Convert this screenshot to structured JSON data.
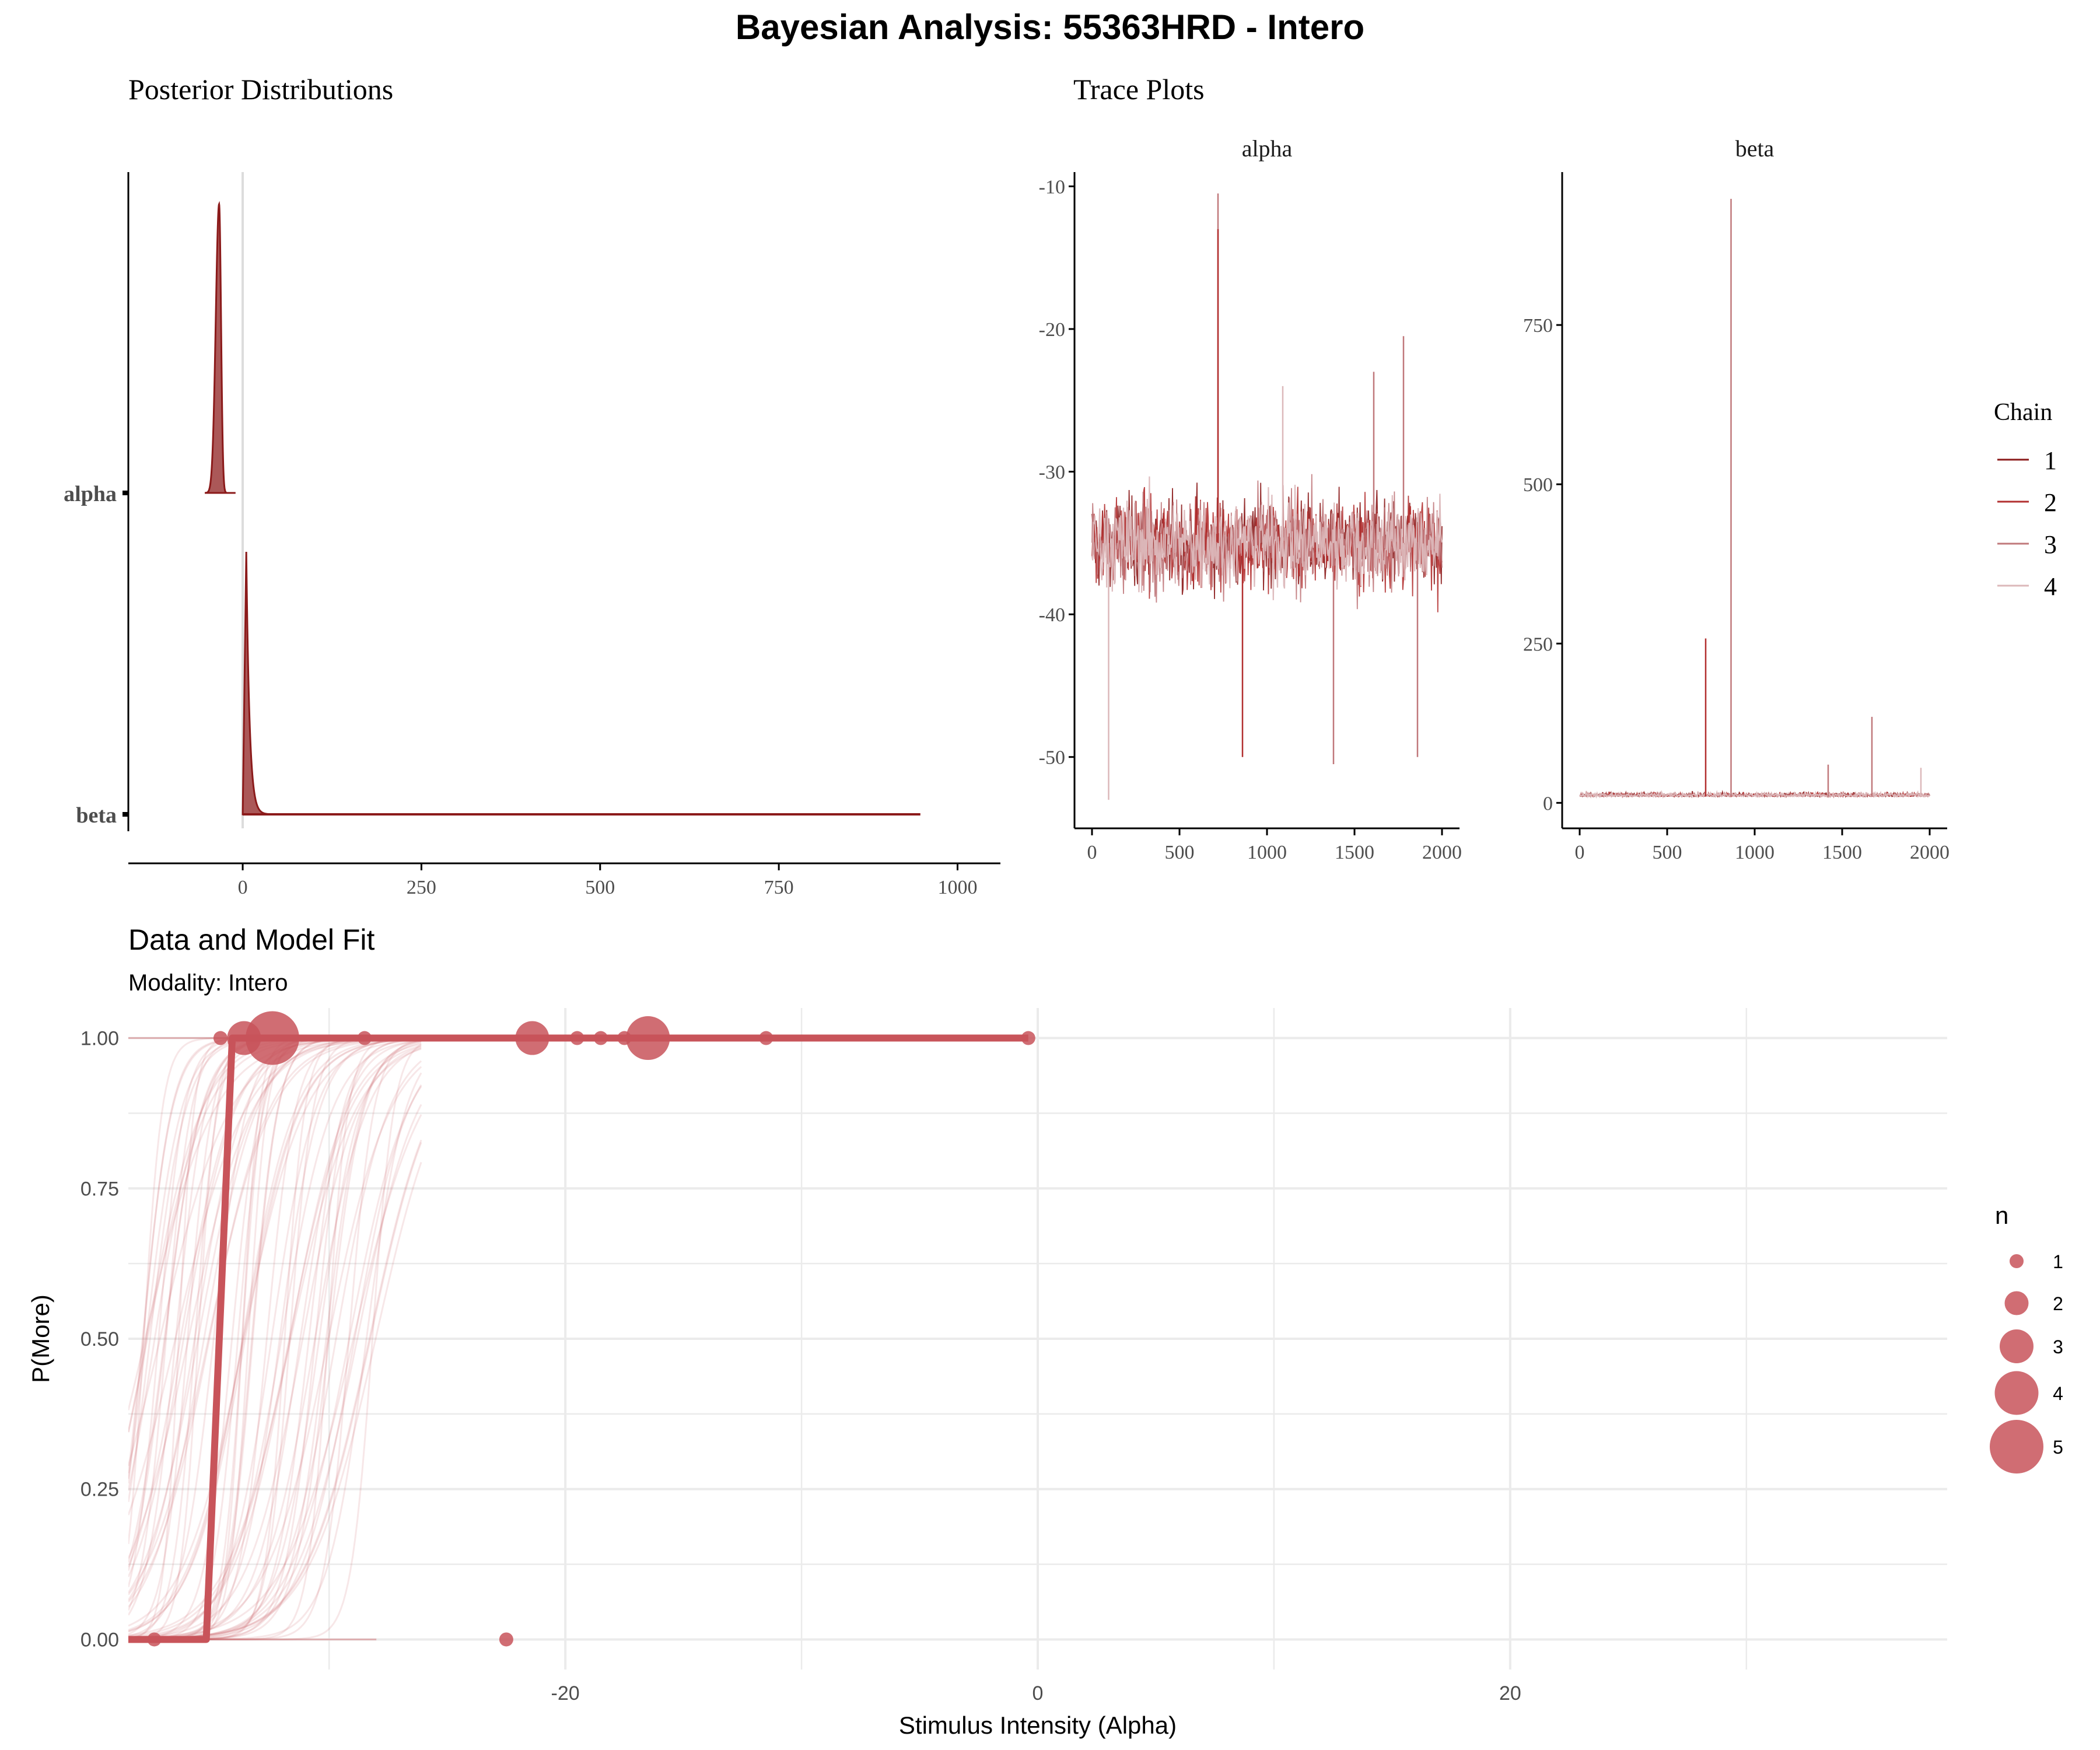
{
  "figure": {
    "title": "Bayesian Analysis: 55363HRD - Intero"
  },
  "colors": {
    "chain1": "#8b1a1a",
    "chain2": "#b22f2f",
    "chain3": "#c0787b",
    "chain4": "#dcb8ba",
    "fit": "#c8545a",
    "posterior_fill": "#9c3b3b",
    "axis": "#000000",
    "grid": "#ebebeb",
    "tick_text": "#4d4d4d"
  },
  "posterior": {
    "title": "Posterior Distributions",
    "xlabel": "",
    "ylabel": ""
  },
  "trace": {
    "title": "Trace Plots",
    "legend_title": "Chain",
    "chains": [
      "1",
      "2",
      "3",
      "4"
    ]
  },
  "fit": {
    "title": "Data and Model Fit",
    "subtitle": "Modality: Intero",
    "xlabel": "Stimulus Intensity (Alpha)",
    "ylabel": "P(More)",
    "size_legend_title": "n",
    "size_legend": [
      "1",
      "2",
      "3",
      "4",
      "5"
    ]
  },
  "chart_data": [
    {
      "id": "posterior",
      "type": "area",
      "title": "Posterior Distributions",
      "categories": [
        "alpha",
        "beta"
      ],
      "x_ticks": [
        0,
        250,
        500,
        750,
        1000
      ],
      "xlim": [
        -160,
        1060
      ],
      "series": [
        {
          "category": "alpha",
          "mode": -33,
          "spread_left": 14,
          "spread_right": 8,
          "min": -53,
          "max": -10
        },
        {
          "category": "beta",
          "mode": 5,
          "min": 0,
          "max": 948
        }
      ],
      "zero_line": 0
    },
    {
      "id": "trace-alpha",
      "type": "line",
      "title": "alpha",
      "x_ticks": [
        0,
        500,
        1000,
        1500,
        2000
      ],
      "xlim": [
        -100,
        2100
      ],
      "y_ticks": [
        -10,
        -20,
        -30,
        -40,
        -50
      ],
      "ylim": [
        -55,
        -9
      ],
      "center": -35,
      "spikes": [
        {
          "x": 720,
          "y": -10.5
        },
        {
          "x": 720,
          "y": -13
        },
        {
          "x": 1780,
          "y": -20.5
        },
        {
          "x": 95,
          "y": -53
        },
        {
          "x": 1380,
          "y": -50.5
        },
        {
          "x": 860,
          "y": -50
        },
        {
          "x": 1860,
          "y": -50
        },
        {
          "x": 1090,
          "y": -24
        },
        {
          "x": 1610,
          "y": -23
        }
      ],
      "iterations": 2000
    },
    {
      "id": "trace-beta",
      "type": "line",
      "title": "beta",
      "x_ticks": [
        0,
        500,
        1000,
        1500,
        2000
      ],
      "xlim": [
        -100,
        2100
      ],
      "y_ticks": [
        0,
        250,
        500,
        750
      ],
      "ylim": [
        -40,
        990
      ],
      "center": 10,
      "spikes": [
        {
          "x": 865,
          "y": 948
        },
        {
          "x": 720,
          "y": 258
        },
        {
          "x": 1670,
          "y": 135
        },
        {
          "x": 1950,
          "y": 55
        },
        {
          "x": 1420,
          "y": 60
        }
      ],
      "iterations": 2000
    },
    {
      "id": "fit",
      "type": "scatter",
      "title": "Data and Model Fit",
      "xlabel": "Stimulus Intensity (Alpha)",
      "ylabel": "P(More)",
      "x_ticks": [
        -20,
        0,
        20
      ],
      "xlim": [
        -38.5,
        38.5
      ],
      "y_ticks": [
        0.0,
        0.25,
        0.5,
        0.75,
        1.0
      ],
      "y_tick_labels": [
        "0.00",
        "0.25",
        "0.50",
        "0.75",
        "1.00"
      ],
      "ylim": [
        -0.05,
        1.05
      ],
      "points": [
        {
          "x": -37.4,
          "y": 0,
          "n": 1
        },
        {
          "x": -22.5,
          "y": 0,
          "n": 1
        },
        {
          "x": -34.6,
          "y": 1,
          "n": 1
        },
        {
          "x": -33.6,
          "y": 1,
          "n": 3
        },
        {
          "x": -32.4,
          "y": 1,
          "n": 5
        },
        {
          "x": -28.5,
          "y": 1,
          "n": 1
        },
        {
          "x": -21.4,
          "y": 1,
          "n": 3
        },
        {
          "x": -19.5,
          "y": 1,
          "n": 1
        },
        {
          "x": -18.5,
          "y": 1,
          "n": 1
        },
        {
          "x": -17.5,
          "y": 1,
          "n": 1
        },
        {
          "x": -16.5,
          "y": 1,
          "n": 4
        },
        {
          "x": -11.5,
          "y": 1,
          "n": 1
        },
        {
          "x": -0.4,
          "y": 1,
          "n": 1
        }
      ],
      "fit_line": {
        "step_from": -35.2,
        "step_to": -34.1,
        "x_end": -0.4
      },
      "posterior_curves": {
        "alpha_min": -38,
        "alpha_max": -28
      }
    }
  ]
}
